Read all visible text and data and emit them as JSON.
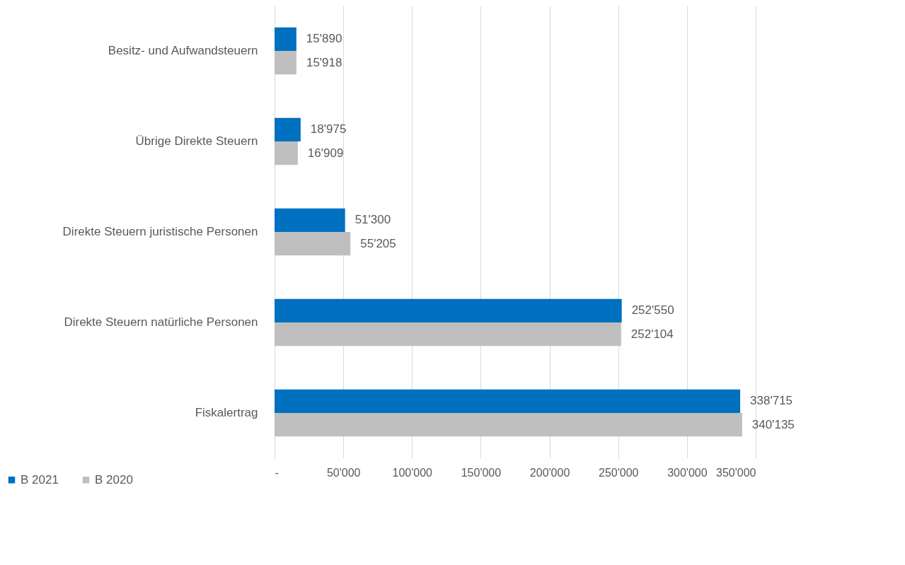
{
  "chart_data": {
    "type": "bar",
    "orientation": "horizontal",
    "categories": [
      "Besitz- und Aufwandsteuern",
      "Übrige Direkte Steuern",
      "Direkte Steuern juristische Personen",
      "Direkte Steuern natürliche Personen",
      "Fiskalertrag"
    ],
    "series": [
      {
        "name": "B 2021",
        "color": "#0070c0",
        "values": [
          15890,
          18975,
          51300,
          252550,
          338715
        ],
        "value_labels": [
          "15'890",
          "18'975",
          "51'300",
          "252'550",
          "338'715"
        ]
      },
      {
        "name": "B 2020",
        "color": "#bfbfbf",
        "values": [
          15918,
          16909,
          55205,
          252104,
          340135
        ],
        "value_labels": [
          "15'918",
          "16'909",
          "55'205",
          "252'104",
          "340'135"
        ]
      }
    ],
    "xlim": [
      0,
      350000
    ],
    "xticks": [
      {
        "value": 0,
        "label": "-"
      },
      {
        "value": 50000,
        "label": "50'000"
      },
      {
        "value": 100000,
        "label": "100'000"
      },
      {
        "value": 150000,
        "label": "150'000"
      },
      {
        "value": 200000,
        "label": "200'000"
      },
      {
        "value": 250000,
        "label": "250'000"
      },
      {
        "value": 300000,
        "label": "300'000"
      },
      {
        "value": 350000,
        "label": "350'000"
      }
    ],
    "grid": "x",
    "legend": "bottom left"
  }
}
